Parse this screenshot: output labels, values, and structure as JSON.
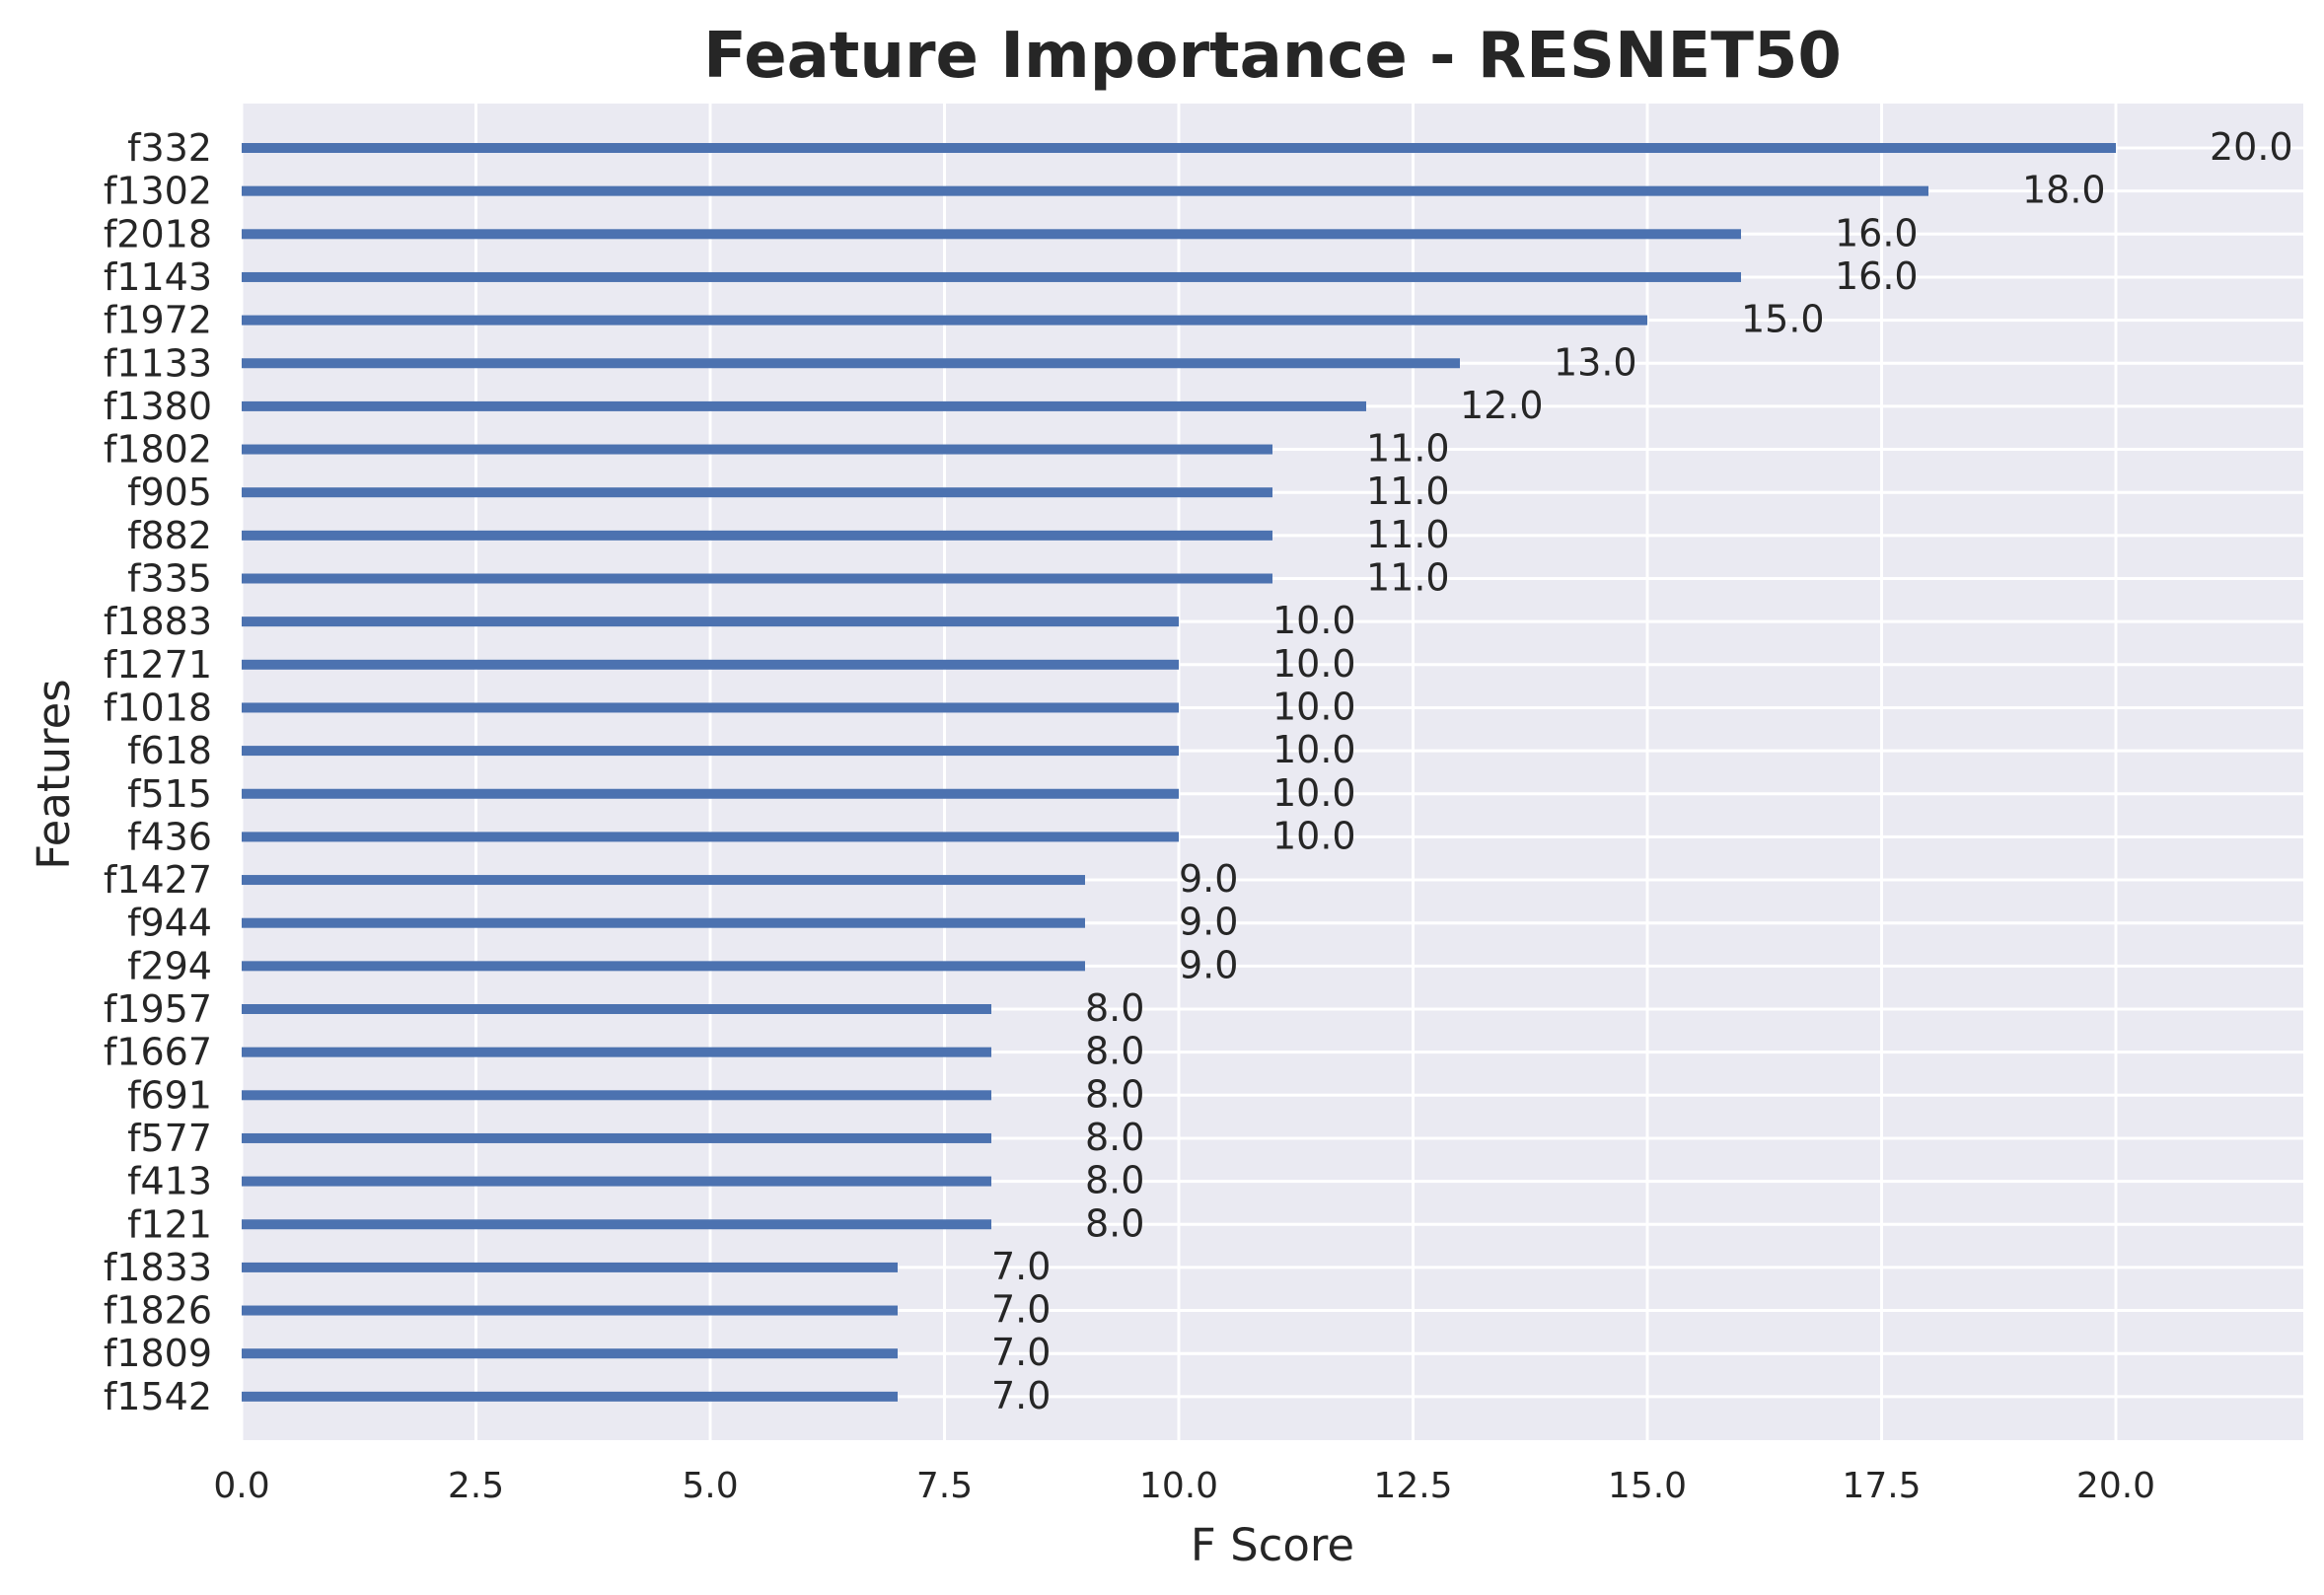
{
  "chart_data": {
    "type": "bar",
    "orientation": "horizontal",
    "title": "Feature Importance - RESNET50",
    "xlabel": "F Score",
    "ylabel": "Features",
    "xlim": [
      0,
      22
    ],
    "xticks": [
      "0.0",
      "2.5",
      "5.0",
      "7.5",
      "10.0",
      "12.5",
      "15.0",
      "17.5",
      "20.0"
    ],
    "grid": true,
    "categories": [
      "f332",
      "f1302",
      "f2018",
      "f1143",
      "f1972",
      "f1133",
      "f1380",
      "f1802",
      "f905",
      "f882",
      "f335",
      "f1883",
      "f1271",
      "f1018",
      "f618",
      "f515",
      "f436",
      "f1427",
      "f944",
      "f294",
      "f1957",
      "f1667",
      "f691",
      "f577",
      "f413",
      "f121",
      "f1833",
      "f1826",
      "f1809",
      "f1542"
    ],
    "values": [
      20,
      18,
      16,
      16,
      15,
      13,
      12,
      11,
      11,
      11,
      11,
      10,
      10,
      10,
      10,
      10,
      10,
      9,
      9,
      9,
      8,
      8,
      8,
      8,
      8,
      8,
      7,
      7,
      7,
      7
    ],
    "data_labels": [
      "20.0",
      "18.0",
      "16.0",
      "16.0",
      "15.0",
      "13.0",
      "12.0",
      "11.0",
      "11.0",
      "11.0",
      "11.0",
      "10.0",
      "10.0",
      "10.0",
      "10.0",
      "10.0",
      "10.0",
      "9.0",
      "9.0",
      "9.0",
      "8.0",
      "8.0",
      "8.0",
      "8.0",
      "8.0",
      "8.0",
      "7.0",
      "7.0",
      "7.0",
      "7.0"
    ],
    "colors": {
      "bar": "#4c72b0",
      "plot_background": "#eaeaf2",
      "grid": "#ffffff",
      "text": "#262626"
    }
  }
}
